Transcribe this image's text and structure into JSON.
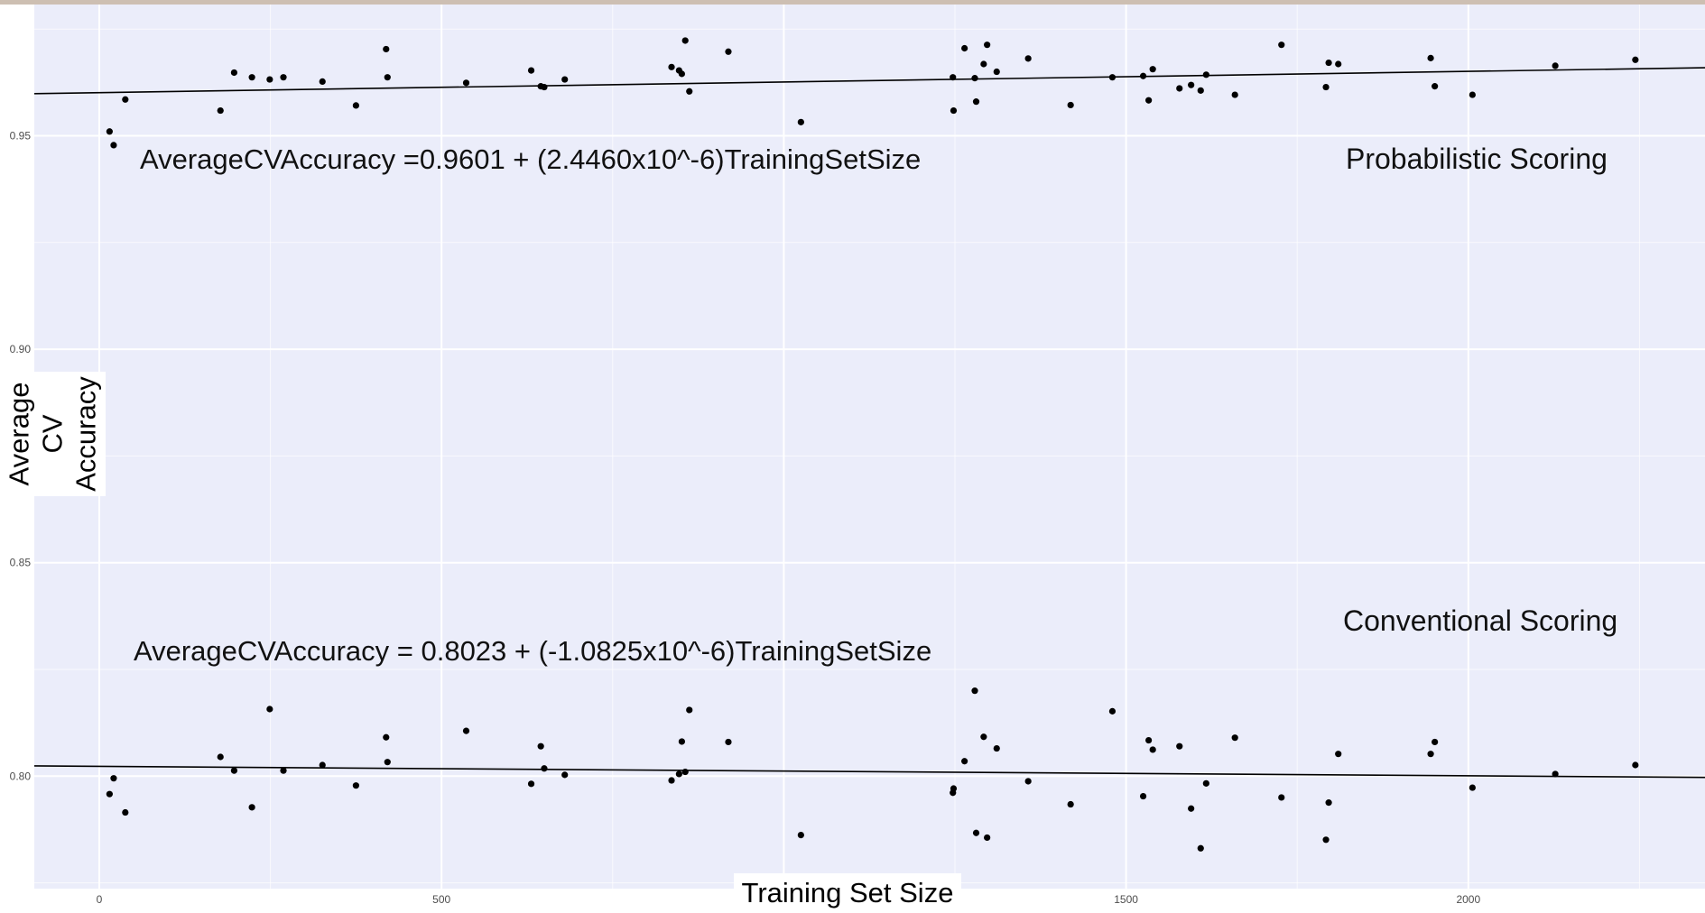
{
  "chart_data": {
    "type": "scatter",
    "xlabel": "Training Set Size",
    "ylabel": "Average CV Accuracy",
    "xlim": [
      -95,
      2390
    ],
    "ylim": [
      0.7745,
      0.9762
    ],
    "x_ticks": [
      0,
      500,
      1000,
      1500,
      2000
    ],
    "x_tick_labels": [
      "0",
      "500",
      "",
      "1500",
      "2000"
    ],
    "y_ticks": [
      0.8,
      0.85,
      0.9,
      0.95
    ],
    "y_tick_labels": [
      "0.80",
      "0.85",
      "0.90",
      "0.95"
    ],
    "grid": true,
    "background": "#ebedfa",
    "gridline_color": "#ffffff",
    "point_color": "#000000",
    "series": [
      {
        "name": "Probabilistic Scoring",
        "equation": "AverageCVAccuracy =0.9601 +  (2.4460x10^-6)TrainingSetSize",
        "fit": {
          "intercept": 0.9601,
          "slope": 2.446e-06
        },
        "points": [
          [
            15,
            0.951
          ],
          [
            21,
            0.9478
          ],
          [
            38,
            0.9585
          ],
          [
            177,
            0.9559
          ],
          [
            197,
            0.9648
          ],
          [
            223,
            0.9637
          ],
          [
            249,
            0.9632
          ],
          [
            269,
            0.9637
          ],
          [
            326,
            0.9627
          ],
          [
            375,
            0.9571
          ],
          [
            419,
            0.9703
          ],
          [
            421,
            0.9637
          ],
          [
            536,
            0.9624
          ],
          [
            631,
            0.9653
          ],
          [
            645,
            0.9616
          ],
          [
            650,
            0.9614
          ],
          [
            680,
            0.9632
          ],
          [
            836,
            0.9661
          ],
          [
            847,
            0.9653
          ],
          [
            851,
            0.9645
          ],
          [
            856,
            0.9723
          ],
          [
            862,
            0.9604
          ],
          [
            919,
            0.9697
          ],
          [
            1025,
            0.9532
          ],
          [
            1247,
            0.9637
          ],
          [
            1248,
            0.9559
          ],
          [
            1264,
            0.9705
          ],
          [
            1279,
            0.9635
          ],
          [
            1281,
            0.958
          ],
          [
            1292,
            0.9668
          ],
          [
            1297,
            0.9713
          ],
          [
            1311,
            0.965
          ],
          [
            1357,
            0.9681
          ],
          [
            1419,
            0.9572
          ],
          [
            1480,
            0.9637
          ],
          [
            1525,
            0.964
          ],
          [
            1533,
            0.9583
          ],
          [
            1539,
            0.9656
          ],
          [
            1578,
            0.9611
          ],
          [
            1595,
            0.9619
          ],
          [
            1609,
            0.9606
          ],
          [
            1617,
            0.9643
          ],
          [
            1659,
            0.9596
          ],
          [
            1727,
            0.9713
          ],
          [
            1792,
            0.9614
          ],
          [
            1796,
            0.9671
          ],
          [
            1810,
            0.9668
          ],
          [
            1945,
            0.9682
          ],
          [
            1951,
            0.9616
          ],
          [
            2006,
            0.9596
          ],
          [
            2127,
            0.9664
          ],
          [
            2244,
            0.9678
          ]
        ]
      },
      {
        "name": "Conventional Scoring",
        "equation": "AverageCVAccuracy = 0.8023 + (-1.0825x10^-6)TrainingSetSize",
        "fit": {
          "intercept": 0.8023,
          "slope": -1.0825e-06
        },
        "points": [
          [
            15,
            0.7958
          ],
          [
            21,
            0.7995
          ],
          [
            38,
            0.7915
          ],
          [
            177,
            0.8045
          ],
          [
            197,
            0.8013
          ],
          [
            223,
            0.7927
          ],
          [
            249,
            0.8157
          ],
          [
            269,
            0.8013
          ],
          [
            326,
            0.8026
          ],
          [
            375,
            0.7978
          ],
          [
            419,
            0.8091
          ],
          [
            421,
            0.8033
          ],
          [
            536,
            0.8106
          ],
          [
            631,
            0.7982
          ],
          [
            645,
            0.807
          ],
          [
            650,
            0.8018
          ],
          [
            680,
            0.8003
          ],
          [
            836,
            0.799
          ],
          [
            847,
            0.8005
          ],
          [
            851,
            0.8081
          ],
          [
            856,
            0.801
          ],
          [
            862,
            0.8155
          ],
          [
            919,
            0.808
          ],
          [
            1025,
            0.7862
          ],
          [
            1247,
            0.7961
          ],
          [
            1248,
            0.7971
          ],
          [
            1264,
            0.8035
          ],
          [
            1279,
            0.82
          ],
          [
            1281,
            0.7867
          ],
          [
            1292,
            0.8092
          ],
          [
            1297,
            0.7856
          ],
          [
            1311,
            0.8065
          ],
          [
            1357,
            0.7988
          ],
          [
            1419,
            0.7934
          ],
          [
            1480,
            0.8152
          ],
          [
            1525,
            0.7953
          ],
          [
            1533,
            0.8084
          ],
          [
            1539,
            0.8062
          ],
          [
            1578,
            0.807
          ],
          [
            1595,
            0.7924
          ],
          [
            1609,
            0.7831
          ],
          [
            1617,
            0.7983
          ],
          [
            1659,
            0.809
          ],
          [
            1727,
            0.795
          ],
          [
            1792,
            0.7851
          ],
          [
            1796,
            0.7938
          ],
          [
            1810,
            0.8052
          ],
          [
            1945,
            0.8052
          ],
          [
            1951,
            0.808
          ],
          [
            2006,
            0.7973
          ],
          [
            2127,
            0.8005
          ],
          [
            2244,
            0.8026
          ]
        ]
      }
    ]
  }
}
